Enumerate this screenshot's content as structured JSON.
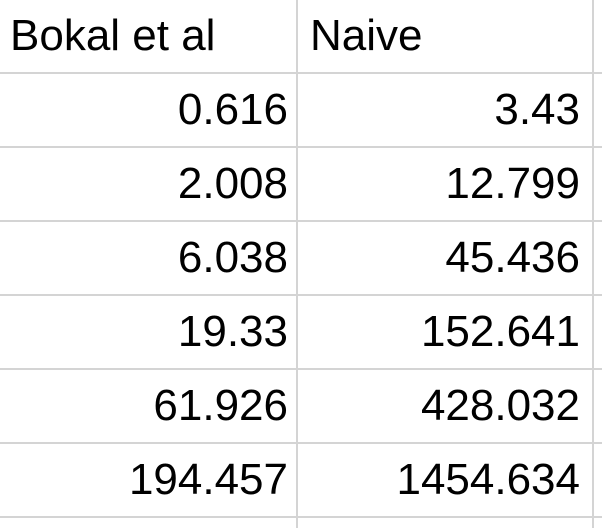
{
  "spreadsheet": {
    "headers": [
      "Bokal et al",
      "Naive"
    ],
    "rows": [
      [
        "0.616",
        "3.43"
      ],
      [
        "2.008",
        "12.799"
      ],
      [
        "6.038",
        "45.436"
      ],
      [
        "19.33",
        "152.641"
      ],
      [
        "61.926",
        "428.032"
      ],
      [
        "194.457",
        "1454.634"
      ]
    ]
  }
}
